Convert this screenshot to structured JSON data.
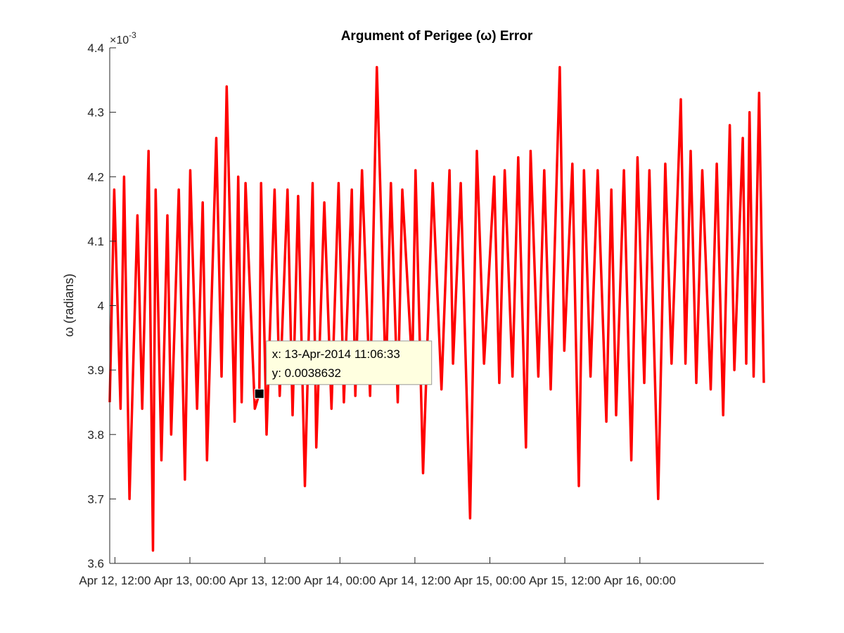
{
  "chart_data": {
    "type": "line",
    "title": "Argument of Perigee (ω) Error",
    "ylabel": "ω (radians)",
    "y_exponent_label": "×10",
    "y_exponent_power": "-3",
    "y_scale": 0.001,
    "ylim": [
      0.0036,
      0.0044
    ],
    "yticks": [
      0.0036,
      0.0037,
      0.0038,
      0.0039,
      0.004,
      0.0041,
      0.0042,
      0.0043,
      0.0044
    ],
    "ytick_labels": [
      "3.6",
      "3.7",
      "3.8",
      "3.9",
      "4",
      "4.1",
      "4.2",
      "4.3",
      "4.4"
    ],
    "xlim": [
      "2014-04-12T11:10:00",
      "2014-04-16T19:50:00"
    ],
    "xticks": [
      "2014-04-12T12:00:00",
      "2014-04-13T00:00:00",
      "2014-04-13T12:00:00",
      "2014-04-14T00:00:00",
      "2014-04-14T12:00:00",
      "2014-04-15T00:00:00",
      "2014-04-15T12:00:00",
      "2014-04-16T00:00:00"
    ],
    "xtick_labels": [
      "Apr 12, 12:00",
      "Apr 13, 00:00",
      "Apr 13, 12:00",
      "Apr 14, 00:00",
      "Apr 14, 12:00",
      "Apr 15, 00:00",
      "Apr 15, 12:00",
      "Apr 16, 00:00"
    ],
    "grid": false,
    "series_color": "#ff0000",
    "series": [
      {
        "x": [
          "2014-04-12T11:10:00",
          "2014-04-12T11:53:00",
          "2014-04-12T12:54:00",
          "2014-04-12T13:28:00",
          "2014-04-12T14:20:00",
          "2014-04-12T15:36:00",
          "2014-04-12T16:22:00",
          "2014-04-12T17:23:00",
          "2014-04-12T18:05:00",
          "2014-04-12T18:31:00",
          "2014-04-12T19:26:00",
          "2014-04-12T20:24:00",
          "2014-04-12T21:00:00",
          "2014-04-12T22:13:00",
          "2014-04-12T23:12:00",
          "2014-04-13T00:03:00",
          "2014-04-13T01:09:00",
          "2014-04-13T02:03:00",
          "2014-04-13T02:44:00",
          "2014-04-13T04:13:00",
          "2014-04-13T05:04:00",
          "2014-04-13T05:53:00",
          "2014-04-13T07:09:00",
          "2014-04-13T07:44:00",
          "2014-04-13T08:17:00",
          "2014-04-13T08:54:00",
          "2014-04-13T10:23:00",
          "2014-04-13T11:06:33",
          "2014-04-13T11:23:00",
          "2014-04-13T12:16:00",
          "2014-04-13T13:33:00",
          "2014-04-13T14:22:00",
          "2014-04-13T15:37:00",
          "2014-04-13T16:26:00",
          "2014-04-13T17:19:00",
          "2014-04-13T18:24:00",
          "2014-04-13T19:38:00",
          "2014-04-13T20:13:00",
          "2014-04-13T21:30:00",
          "2014-04-13T22:39:00",
          "2014-04-13T23:47:00",
          "2014-04-14T00:38:00",
          "2014-04-14T01:54:00",
          "2014-04-14T02:28:00",
          "2014-04-14T03:32:00",
          "2014-04-14T04:50:00",
          "2014-04-14T05:55:00",
          "2014-04-14T07:21:00",
          "2014-04-14T08:10:00",
          "2014-04-14T09:15:00",
          "2014-04-14T09:59:00",
          "2014-04-14T11:35:00",
          "2014-04-14T12:06:00",
          "2014-04-14T13:18:00",
          "2014-04-14T14:51:00",
          "2014-04-14T16:15:00",
          "2014-04-14T17:32:00",
          "2014-04-14T18:06:00",
          "2014-04-14T19:20:00",
          "2014-04-14T20:50:00",
          "2014-04-14T21:55:00",
          "2014-04-14T23:04:00",
          "2014-04-15T00:42:00",
          "2014-04-15T01:30:00",
          "2014-04-15T02:22:00",
          "2014-04-15T03:37:00",
          "2014-04-15T04:32:00",
          "2014-04-15T05:46:00",
          "2014-04-15T06:31:00",
          "2014-04-15T07:45:00",
          "2014-04-15T08:42:00",
          "2014-04-15T09:44:00",
          "2014-04-15T11:11:00",
          "2014-04-15T11:54:00",
          "2014-04-15T13:12:00",
          "2014-04-15T14:14:00",
          "2014-04-15T15:03:00",
          "2014-04-15T16:06:00",
          "2014-04-15T17:15:00",
          "2014-04-15T18:38:00",
          "2014-04-15T19:26:00",
          "2014-04-15T20:12:00",
          "2014-04-15T21:27:00",
          "2014-04-15T22:38:00",
          "2014-04-15T23:37:00",
          "2014-04-16T00:42:00",
          "2014-04-16T01:31:00",
          "2014-04-16T02:56:00",
          "2014-04-16T04:04:00",
          "2014-04-16T05:04:00",
          "2014-04-16T06:33:00",
          "2014-04-16T07:18:00",
          "2014-04-16T08:08:00",
          "2014-04-16T09:02:00",
          "2014-04-16T09:59:00",
          "2014-04-16T11:20:00",
          "2014-04-16T12:18:00",
          "2014-04-16T13:20:00",
          "2014-04-16T14:23:00",
          "2014-04-16T15:07:00",
          "2014-04-16T16:28:00",
          "2014-04-16T17:01:00",
          "2014-04-16T17:33:00",
          "2014-04-16T18:12:00",
          "2014-04-16T19:05:00",
          "2014-04-16T19:50:00"
        ],
        "values": [
          0.00385,
          0.00418,
          0.00384,
          0.0042,
          0.0037,
          0.00414,
          0.00384,
          0.00424,
          0.00362,
          0.00418,
          0.00376,
          0.00414,
          0.0038,
          0.00418,
          0.00373,
          0.00421,
          0.00384,
          0.00416,
          0.00376,
          0.00426,
          0.00389,
          0.00434,
          0.00382,
          0.0042,
          0.00385,
          0.00419,
          0.00384,
          0.0038632,
          0.00419,
          0.0038,
          0.00418,
          0.00386,
          0.00418,
          0.00383,
          0.00417,
          0.00372,
          0.00419,
          0.00378,
          0.00416,
          0.00384,
          0.00419,
          0.00385,
          0.00418,
          0.00386,
          0.00421,
          0.00386,
          0.00437,
          0.00388,
          0.00419,
          0.00385,
          0.00418,
          0.0039,
          0.00421,
          0.00374,
          0.00419,
          0.00387,
          0.00421,
          0.00391,
          0.00419,
          0.00367,
          0.00424,
          0.00391,
          0.0042,
          0.00388,
          0.00421,
          0.00389,
          0.00423,
          0.00378,
          0.00424,
          0.00389,
          0.00421,
          0.00387,
          0.00437,
          0.00393,
          0.00422,
          0.00372,
          0.00421,
          0.00389,
          0.00421,
          0.00382,
          0.00418,
          0.00383,
          0.00421,
          0.00376,
          0.00423,
          0.00388,
          0.00421,
          0.0037,
          0.00422,
          0.00391,
          0.00432,
          0.00391,
          0.00424,
          0.00388,
          0.00421,
          0.00387,
          0.00422,
          0.00383,
          0.00428,
          0.0039,
          0.00426,
          0.00391,
          0.0043,
          0.00389,
          0.00433,
          0.00388
        ]
      }
    ]
  },
  "datatip": {
    "x_text": "x: 13-Apr-2014 11:06:33",
    "y_text": "y: 0.0038632",
    "x": "2014-04-13T11:06:33",
    "y": 0.0038632
  }
}
